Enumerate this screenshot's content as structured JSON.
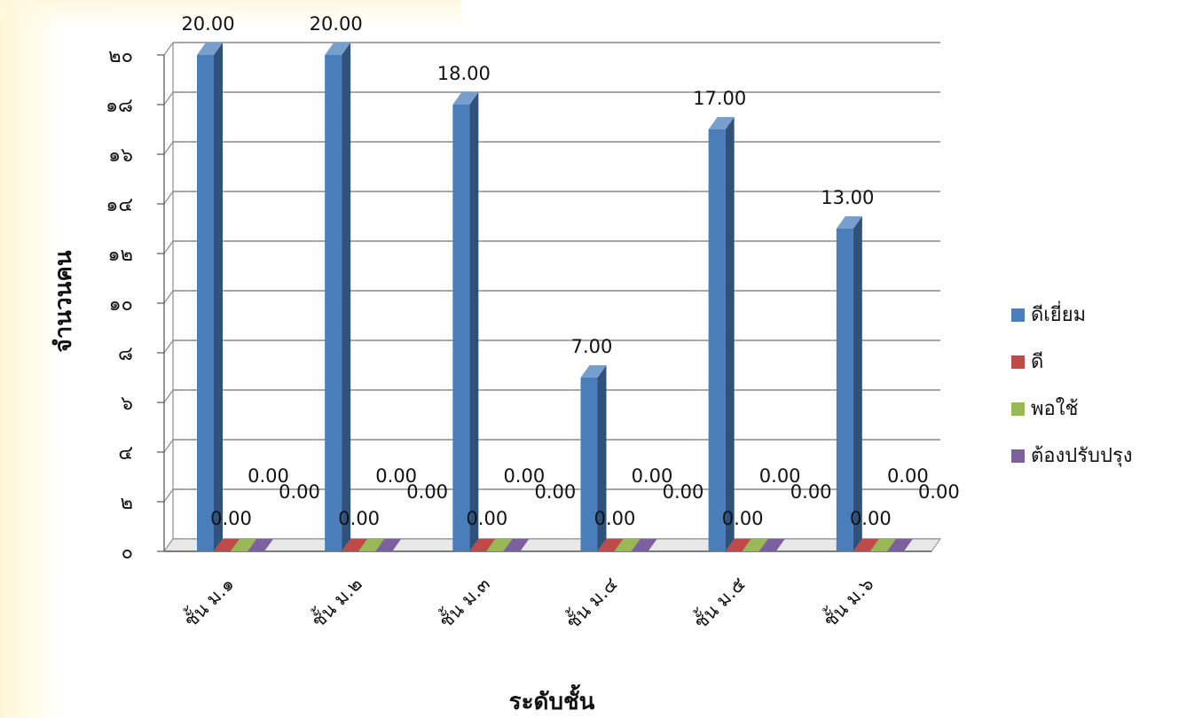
{
  "chart_data": {
    "type": "bar",
    "title": "",
    "xlabel": "ระดับชั้น",
    "ylabel": "จำนวนคน",
    "ylim": [
      0,
      20
    ],
    "y_ticks": [
      "๐",
      "๒",
      "๔",
      "๖",
      "๘",
      "๑๐",
      "๑๒",
      "๑๔",
      "๑๖",
      "๑๘",
      "๒๐"
    ],
    "categories": [
      "ชั้น ม.๑",
      "ชั้น ม.๒",
      "ชั้น ม.๓",
      "ชั้น ม.๔",
      "ชั้น ม.๕",
      "ชั้น ม.๖"
    ],
    "series": [
      {
        "name": "ดีเยี่ยม",
        "values": [
          20,
          20,
          18,
          7,
          17,
          13
        ],
        "labels": [
          "20.00",
          "20.00",
          "18.00",
          "7.00",
          "17.00",
          "13.00"
        ],
        "color": "#4a7ebb"
      },
      {
        "name": "ดี",
        "values": [
          0,
          0,
          0,
          0,
          0,
          0
        ],
        "labels": [
          "0.00",
          "0.00",
          "0.00",
          "0.00",
          "0.00",
          "0.00"
        ],
        "color": "#be4b48"
      },
      {
        "name": "พอใช้",
        "values": [
          0,
          0,
          0,
          0,
          0,
          0
        ],
        "labels": [
          "0.00",
          "0.00",
          "0.00",
          "0.00",
          "0.00",
          "0.00"
        ],
        "color": "#98b954"
      },
      {
        "name": "ต้องปรับปรุง",
        "values": [
          0,
          0,
          0,
          0,
          0,
          0
        ],
        "labels": [
          "0.00",
          "0.00",
          "0.00",
          "0.00",
          "0.00",
          "0.00"
        ],
        "color": "#7d60a0"
      }
    ],
    "grid": true,
    "legend_position": "right",
    "style": "3d-clustered-column"
  }
}
